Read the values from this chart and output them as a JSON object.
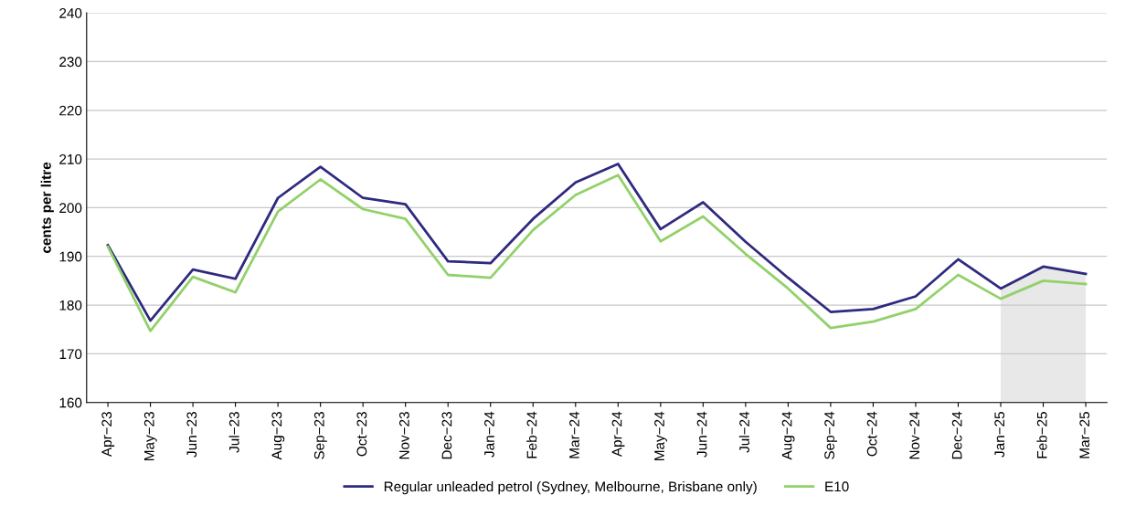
{
  "chart_data": {
    "type": "line",
    "ylabel": "cents per litre",
    "categories": [
      "Apr−23",
      "May−23",
      "Jun−23",
      "Jul−23",
      "Aug−23",
      "Sep−23",
      "Oct−23",
      "Nov−23",
      "Dec−23",
      "Jan−24",
      "Feb−24",
      "Mar−24",
      "Apr−24",
      "May−24",
      "Jun−24",
      "Jul−24",
      "Aug−24",
      "Sep−24",
      "Oct−24",
      "Nov−24",
      "Dec−24",
      "Jan−25",
      "Feb−25",
      "Mar−25"
    ],
    "series": [
      {
        "name": "Regular unleaded petrol (Sydney, Melbourne, Brisbane only)",
        "color": "#2e2a7f",
        "values": [
          192.3,
          176.8,
          187.3,
          185.4,
          202.0,
          208.4,
          202.0,
          200.7,
          189.0,
          188.6,
          197.7,
          205.2,
          209.0,
          195.6,
          201.1,
          193.0,
          185.6,
          178.6,
          179.2,
          181.8,
          189.4,
          183.4,
          187.9,
          186.4
        ]
      },
      {
        "name": "E10",
        "color": "#92d16a",
        "values": [
          192.0,
          174.7,
          185.8,
          182.6,
          199.2,
          205.8,
          199.7,
          197.7,
          186.2,
          185.6,
          195.4,
          202.6,
          206.7,
          193.1,
          198.2,
          190.5,
          183.4,
          175.3,
          176.6,
          179.2,
          186.2,
          181.3,
          185.0,
          184.3
        ]
      }
    ],
    "bands": [
      {
        "axis": "x",
        "from": "Jan−25",
        "to": "Mar−25",
        "color": "#e8e8e8"
      }
    ],
    "ylim": [
      160,
      240
    ],
    "yticks": [
      160,
      170,
      180,
      190,
      200,
      210,
      220,
      230,
      240
    ],
    "grid": "y",
    "legend": "bottom",
    "marker": "none",
    "line_style": "solid"
  }
}
